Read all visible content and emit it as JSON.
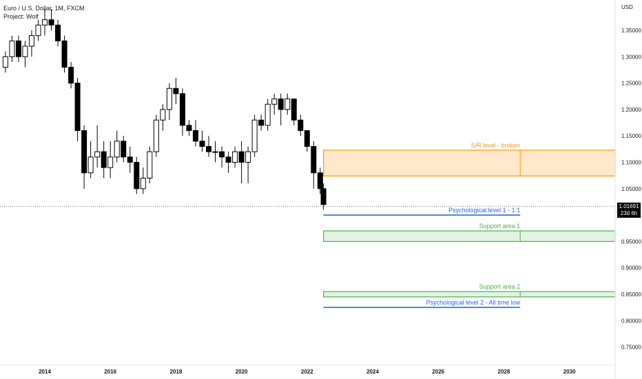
{
  "legend": {
    "symbol": "Euro / U.S. Dollar, 1M, FXCM",
    "author": "Project: Wolf"
  },
  "currency": "USD",
  "last_price": {
    "value": "1.01691",
    "countdown": "23d 6h",
    "level": 1.01691
  },
  "colors": {
    "candle": "#000000",
    "resistance_line": "#ff9800",
    "resistance_fill": "#ffe8cc",
    "support_line": "#4caf50",
    "support_fill": "#e2f3e2",
    "psych_line": "#1e5cd6",
    "psych_text": "#2962ff",
    "support_text": "#4caf50",
    "resistance_text": "#ff9800"
  },
  "chart_data": {
    "type": "candlestick",
    "title": "Euro / U.S. Dollar, 1M, FXCM",
    "ylabel": "USD",
    "ylim": [
      0.71,
      1.39
    ],
    "y_ticks": [
      "1.35000",
      "1.30000",
      "1.25000",
      "1.20000",
      "1.15000",
      "1.10000",
      "1.05000",
      "0.95000",
      "0.90000",
      "0.85000",
      "0.80000",
      "0.75000"
    ],
    "x_ticks": [
      "2014",
      "2016",
      "2018",
      "2020",
      "2022",
      "2024",
      "2026",
      "2028",
      "2030"
    ],
    "x_range": [
      2012.7,
      2031.6
    ],
    "grid": false,
    "series": [
      {
        "name": "EURUSD",
        "points": [
          [
            2012.8,
            1.28,
            1.3,
            1.27,
            1.31
          ],
          [
            2013.0,
            1.3,
            1.33,
            1.29,
            1.34
          ],
          [
            2013.2,
            1.33,
            1.3,
            1.29,
            1.34
          ],
          [
            2013.4,
            1.3,
            1.32,
            1.28,
            1.33
          ],
          [
            2013.6,
            1.32,
            1.34,
            1.3,
            1.35
          ],
          [
            2013.8,
            1.34,
            1.36,
            1.33,
            1.37
          ],
          [
            2014.0,
            1.36,
            1.37,
            1.34,
            1.39
          ],
          [
            2014.2,
            1.37,
            1.36,
            1.35,
            1.39
          ],
          [
            2014.4,
            1.36,
            1.33,
            1.32,
            1.37
          ],
          [
            2014.6,
            1.33,
            1.28,
            1.27,
            1.34
          ],
          [
            2014.8,
            1.28,
            1.25,
            1.24,
            1.29
          ],
          [
            2015.0,
            1.25,
            1.16,
            1.14,
            1.26
          ],
          [
            2015.2,
            1.16,
            1.08,
            1.05,
            1.17
          ],
          [
            2015.4,
            1.08,
            1.11,
            1.07,
            1.14
          ],
          [
            2015.6,
            1.11,
            1.12,
            1.09,
            1.17
          ],
          [
            2015.8,
            1.12,
            1.09,
            1.07,
            1.14
          ],
          [
            2016.0,
            1.09,
            1.11,
            1.07,
            1.14
          ],
          [
            2016.2,
            1.11,
            1.14,
            1.1,
            1.16
          ],
          [
            2016.4,
            1.14,
            1.11,
            1.1,
            1.15
          ],
          [
            2016.6,
            1.11,
            1.1,
            1.08,
            1.13
          ],
          [
            2016.8,
            1.1,
            1.05,
            1.04,
            1.11
          ],
          [
            2017.0,
            1.05,
            1.07,
            1.04,
            1.09
          ],
          [
            2017.2,
            1.07,
            1.12,
            1.06,
            1.13
          ],
          [
            2017.4,
            1.12,
            1.18,
            1.11,
            1.19
          ],
          [
            2017.6,
            1.18,
            1.2,
            1.16,
            1.21
          ],
          [
            2017.8,
            1.2,
            1.24,
            1.18,
            1.25
          ],
          [
            2018.0,
            1.24,
            1.23,
            1.21,
            1.26
          ],
          [
            2018.2,
            1.23,
            1.17,
            1.15,
            1.24
          ],
          [
            2018.4,
            1.17,
            1.16,
            1.15,
            1.18
          ],
          [
            2018.6,
            1.16,
            1.14,
            1.13,
            1.18
          ],
          [
            2018.8,
            1.14,
            1.13,
            1.12,
            1.16
          ],
          [
            2019.0,
            1.13,
            1.12,
            1.11,
            1.15
          ],
          [
            2019.2,
            1.12,
            1.12,
            1.1,
            1.14
          ],
          [
            2019.4,
            1.12,
            1.11,
            1.09,
            1.13
          ],
          [
            2019.6,
            1.11,
            1.1,
            1.08,
            1.12
          ],
          [
            2019.8,
            1.1,
            1.12,
            1.09,
            1.13
          ],
          [
            2020.0,
            1.12,
            1.1,
            1.06,
            1.14
          ],
          [
            2020.2,
            1.1,
            1.12,
            1.06,
            1.13
          ],
          [
            2020.4,
            1.12,
            1.18,
            1.11,
            1.19
          ],
          [
            2020.6,
            1.18,
            1.17,
            1.16,
            1.19
          ],
          [
            2020.8,
            1.17,
            1.21,
            1.16,
            1.22
          ],
          [
            2021.0,
            1.21,
            1.22,
            1.19,
            1.23
          ],
          [
            2021.2,
            1.22,
            1.2,
            1.17,
            1.23
          ],
          [
            2021.4,
            1.2,
            1.22,
            1.19,
            1.23
          ],
          [
            2021.6,
            1.22,
            1.18,
            1.17,
            1.22
          ],
          [
            2021.8,
            1.18,
            1.16,
            1.15,
            1.19
          ],
          [
            2022.0,
            1.16,
            1.13,
            1.12,
            1.16
          ],
          [
            2022.2,
            1.13,
            1.08,
            1.05,
            1.14
          ],
          [
            2022.4,
            1.08,
            1.05,
            1.04,
            1.09
          ],
          [
            2022.5,
            1.05,
            1.02,
            1.01,
            1.06
          ]
        ]
      }
    ],
    "zones": [
      {
        "label": "S/R level - broken",
        "kind": "resistance",
        "x_start": 2022.5,
        "top": 1.123,
        "bottom": 1.074,
        "divider_x": 2028.5
      },
      {
        "label": "Support area 1",
        "kind": "support",
        "x_start": 2022.5,
        "top": 0.97,
        "bottom": 0.95,
        "divider_x": 2028.5
      },
      {
        "label": "Support area 2",
        "kind": "support",
        "x_start": 2022.5,
        "top": 0.855,
        "bottom": 0.845,
        "divider_x": 2028.5
      }
    ],
    "lines": [
      {
        "label": "Psychological level 1 - 1:1",
        "level": 1.0,
        "x_start": 2022.5,
        "x_end": 2028.5
      },
      {
        "label": "Psychological level 2 - All time low",
        "level": 0.825,
        "x_start": 2022.5,
        "x_end": 2028.5
      }
    ]
  }
}
